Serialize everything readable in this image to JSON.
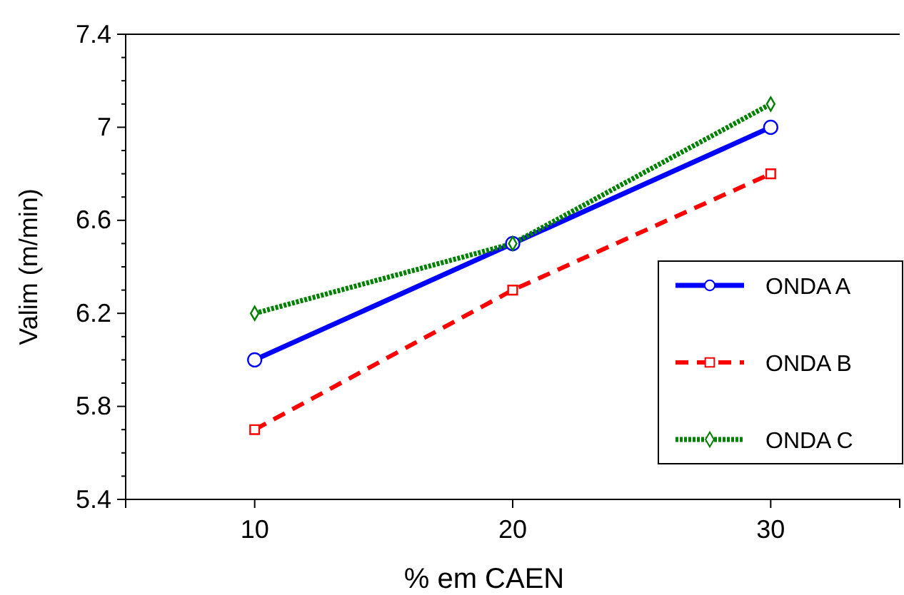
{
  "chart_data": {
    "type": "line",
    "xlabel": "% em CAEN",
    "ylabel": "Valim (m/min)",
    "x": [
      10,
      20,
      30
    ],
    "series": [
      {
        "name": "ONDA A",
        "color": "#0000ff",
        "values": [
          6.0,
          6.5,
          7.0
        ],
        "marker": "circle",
        "line_style": "solid"
      },
      {
        "name": "ONDA B",
        "color": "#ff0000",
        "values": [
          5.7,
          6.3,
          6.8
        ],
        "marker": "square",
        "line_style": "dashed"
      },
      {
        "name": "ONDA C",
        "color": "#008000",
        "values": [
          6.2,
          6.5,
          7.1
        ],
        "marker": "diamond",
        "line_style": "dotted"
      }
    ],
    "xlim": [
      5,
      35
    ],
    "xticks": [
      10,
      20,
      30
    ],
    "ylim": [
      5.4,
      7.4
    ],
    "yticks": [
      5.4,
      {
        "value": 5.5,
        "label": null
      },
      {
        "value": 5.6,
        "label": null
      },
      {
        "value": 5.7,
        "label": null
      },
      5.8,
      {
        "value": 5.9,
        "label": null
      },
      {
        "value": 6.0,
        "label": null
      },
      {
        "value": 6.1,
        "label": null
      },
      6.2,
      {
        "value": 6.3,
        "label": null
      },
      {
        "value": 6.4,
        "label": null
      },
      {
        "value": 6.5,
        "label": null
      },
      6.6,
      {
        "value": 6.7,
        "label": null
      },
      {
        "value": 6.8,
        "label": null
      },
      {
        "value": 6.9,
        "label": null
      },
      7,
      {
        "value": 7.1,
        "label": null
      },
      {
        "value": 7.2,
        "label": null
      },
      {
        "value": 7.3,
        "label": null
      },
      7.4
    ],
    "grid": false,
    "legend": "right"
  }
}
